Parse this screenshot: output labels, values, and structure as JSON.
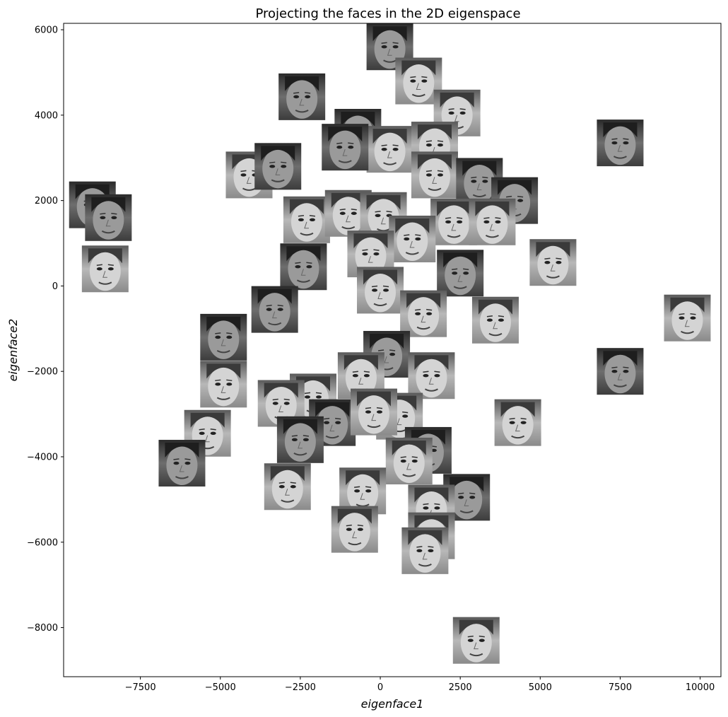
{
  "chart_data": {
    "type": "scatter",
    "title": "Projecting the faces in the 2D eigenspace",
    "xlabel": "eigenface1",
    "ylabel": "eigenface2",
    "xlim": [
      -9900,
      10650
    ],
    "ylim": [
      -9150,
      6150
    ],
    "xticks": [
      -7500,
      -5000,
      -2500,
      0,
      2500,
      5000,
      7500,
      10000
    ],
    "xtick_labels": [
      "−7500",
      "−5000",
      "−2500",
      "0",
      "2500",
      "5000",
      "7500",
      "10000"
    ],
    "yticks": [
      -8000,
      -6000,
      -4000,
      -2000,
      0,
      2000,
      4000,
      6000
    ],
    "ytick_labels": [
      "−8000",
      "−6000",
      "−4000",
      "−2000",
      "0",
      "2000",
      "4000",
      "6000"
    ],
    "grid": false,
    "marker": "grayscale face thumbnail",
    "points": [
      {
        "x": 300,
        "y": 5600,
        "tone": "dark"
      },
      {
        "x": 1200,
        "y": 4800,
        "tone": "light"
      },
      {
        "x": -2450,
        "y": 4430,
        "tone": "dark"
      },
      {
        "x": 2400,
        "y": 4050,
        "tone": "light"
      },
      {
        "x": 7500,
        "y": 3350,
        "tone": "dark"
      },
      {
        "x": -700,
        "y": 3600,
        "tone": "dark"
      },
      {
        "x": 300,
        "y": 3200,
        "tone": "light"
      },
      {
        "x": 1700,
        "y": 3300,
        "tone": "light"
      },
      {
        "x": -1100,
        "y": 3250,
        "tone": "dark"
      },
      {
        "x": -4100,
        "y": 2600,
        "tone": "light"
      },
      {
        "x": -3200,
        "y": 2800,
        "tone": "dark"
      },
      {
        "x": 1700,
        "y": 2600,
        "tone": "light"
      },
      {
        "x": 3100,
        "y": 2450,
        "tone": "dark"
      },
      {
        "x": 4200,
        "y": 2000,
        "tone": "dark"
      },
      {
        "x": -9000,
        "y": 1900,
        "tone": "dark"
      },
      {
        "x": -8500,
        "y": 1600,
        "tone": "dark"
      },
      {
        "x": -2300,
        "y": 1550,
        "tone": "light"
      },
      {
        "x": -1000,
        "y": 1700,
        "tone": "light"
      },
      {
        "x": 100,
        "y": 1650,
        "tone": "light"
      },
      {
        "x": 2300,
        "y": 1500,
        "tone": "light"
      },
      {
        "x": 3500,
        "y": 1500,
        "tone": "light"
      },
      {
        "x": 1000,
        "y": 1100,
        "tone": "light"
      },
      {
        "x": -2400,
        "y": 450,
        "tone": "dark"
      },
      {
        "x": -300,
        "y": 750,
        "tone": "light"
      },
      {
        "x": 2500,
        "y": 300,
        "tone": "dark"
      },
      {
        "x": 5400,
        "y": 550,
        "tone": "light"
      },
      {
        "x": 0,
        "y": -100,
        "tone": "light"
      },
      {
        "x": -8600,
        "y": 400,
        "tone": "light"
      },
      {
        "x": 9600,
        "y": -750,
        "tone": "light"
      },
      {
        "x": -3300,
        "y": -550,
        "tone": "dark"
      },
      {
        "x": 1350,
        "y": -650,
        "tone": "light"
      },
      {
        "x": 3600,
        "y": -800,
        "tone": "light"
      },
      {
        "x": -4900,
        "y": -1200,
        "tone": "dark"
      },
      {
        "x": 200,
        "y": -1600,
        "tone": "dark"
      },
      {
        "x": 7500,
        "y": -2000,
        "tone": "dark"
      },
      {
        "x": -4900,
        "y": -2300,
        "tone": "light"
      },
      {
        "x": -600,
        "y": -2100,
        "tone": "light"
      },
      {
        "x": 1600,
        "y": -2100,
        "tone": "light"
      },
      {
        "x": -2100,
        "y": -2600,
        "tone": "light"
      },
      {
        "x": -3100,
        "y": -2750,
        "tone": "light"
      },
      {
        "x": 600,
        "y": -3050,
        "tone": "light"
      },
      {
        "x": -1500,
        "y": -3200,
        "tone": "dark"
      },
      {
        "x": -200,
        "y": -2950,
        "tone": "light"
      },
      {
        "x": 4300,
        "y": -3200,
        "tone": "light"
      },
      {
        "x": -5400,
        "y": -3450,
        "tone": "light"
      },
      {
        "x": -2500,
        "y": -3600,
        "tone": "dark"
      },
      {
        "x": 1500,
        "y": -3850,
        "tone": "dark"
      },
      {
        "x": -6200,
        "y": -4150,
        "tone": "dark"
      },
      {
        "x": 900,
        "y": -4100,
        "tone": "light"
      },
      {
        "x": -2900,
        "y": -4700,
        "tone": "light"
      },
      {
        "x": -550,
        "y": -4800,
        "tone": "light"
      },
      {
        "x": 2700,
        "y": -4950,
        "tone": "dark"
      },
      {
        "x": 1600,
        "y": -5200,
        "tone": "light"
      },
      {
        "x": -800,
        "y": -5700,
        "tone": "light"
      },
      {
        "x": 1600,
        "y": -5850,
        "tone": "light"
      },
      {
        "x": 1400,
        "y": -6200,
        "tone": "light"
      },
      {
        "x": 3000,
        "y": -8300,
        "tone": "light"
      }
    ]
  }
}
